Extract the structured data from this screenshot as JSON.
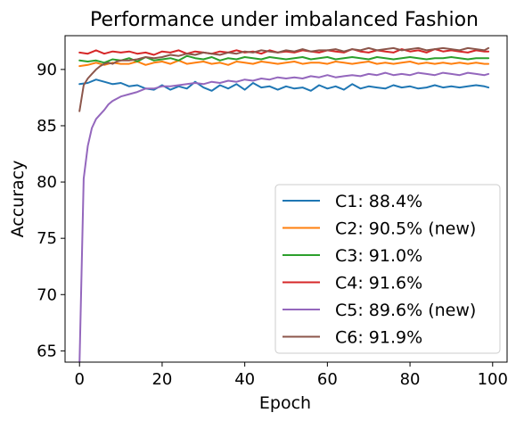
{
  "chart_data": {
    "type": "line",
    "title": "Performance under imbalanced Fashion",
    "xlabel": "Epoch",
    "ylabel": "Accuracy",
    "xlim": [
      -3.5,
      103.5
    ],
    "ylim": [
      64,
      93
    ],
    "xticks": [
      0,
      20,
      40,
      60,
      80,
      100
    ],
    "yticks": [
      65,
      70,
      75,
      80,
      85,
      90
    ],
    "grid": false,
    "legend_position": "lower-right",
    "series": [
      {
        "name": "C1: 88.4%",
        "color": "#1f77b4",
        "x": [
          0,
          2,
          4,
          6,
          8,
          10,
          12,
          14,
          16,
          18,
          20,
          22,
          24,
          26,
          28,
          30,
          32,
          34,
          36,
          38,
          40,
          42,
          44,
          46,
          48,
          50,
          52,
          54,
          56,
          58,
          60,
          62,
          64,
          66,
          68,
          70,
          72,
          74,
          76,
          78,
          80,
          82,
          84,
          86,
          88,
          90,
          92,
          94,
          96,
          98,
          99
        ],
        "y": [
          88.7,
          88.8,
          89.1,
          88.9,
          88.7,
          88.8,
          88.5,
          88.6,
          88.3,
          88.2,
          88.6,
          88.2,
          88.5,
          88.3,
          88.9,
          88.4,
          88.1,
          88.6,
          88.3,
          88.7,
          88.2,
          88.8,
          88.4,
          88.5,
          88.2,
          88.5,
          88.3,
          88.4,
          88.1,
          88.6,
          88.3,
          88.5,
          88.2,
          88.7,
          88.3,
          88.5,
          88.4,
          88.3,
          88.6,
          88.4,
          88.5,
          88.3,
          88.4,
          88.6,
          88.4,
          88.5,
          88.4,
          88.5,
          88.6,
          88.5,
          88.4
        ]
      },
      {
        "name": "C2: 90.5% (new)",
        "color": "#ff7f0e",
        "x": [
          0,
          2,
          4,
          6,
          8,
          10,
          12,
          14,
          16,
          18,
          20,
          22,
          24,
          26,
          28,
          30,
          32,
          34,
          36,
          38,
          40,
          42,
          44,
          46,
          48,
          50,
          52,
          54,
          56,
          58,
          60,
          62,
          64,
          66,
          68,
          70,
          72,
          74,
          76,
          78,
          80,
          82,
          84,
          86,
          88,
          90,
          92,
          94,
          96,
          98,
          99
        ],
        "y": [
          90.3,
          90.4,
          90.6,
          90.4,
          90.6,
          90.5,
          90.5,
          90.7,
          90.4,
          90.6,
          90.7,
          90.5,
          90.8,
          90.5,
          90.6,
          90.7,
          90.5,
          90.6,
          90.4,
          90.7,
          90.6,
          90.5,
          90.7,
          90.6,
          90.5,
          90.6,
          90.7,
          90.5,
          90.6,
          90.6,
          90.5,
          90.7,
          90.6,
          90.5,
          90.6,
          90.7,
          90.5,
          90.6,
          90.5,
          90.6,
          90.7,
          90.5,
          90.6,
          90.5,
          90.6,
          90.5,
          90.6,
          90.5,
          90.6,
          90.5,
          90.5
        ]
      },
      {
        "name": "C3: 91.0%",
        "color": "#2ca02c",
        "x": [
          0,
          2,
          4,
          6,
          8,
          10,
          12,
          14,
          16,
          18,
          20,
          22,
          24,
          26,
          28,
          30,
          32,
          34,
          36,
          38,
          40,
          42,
          44,
          46,
          48,
          50,
          52,
          54,
          56,
          58,
          60,
          62,
          64,
          66,
          68,
          70,
          72,
          74,
          76,
          78,
          80,
          82,
          84,
          86,
          88,
          90,
          92,
          94,
          96,
          98,
          99
        ],
        "y": [
          90.8,
          90.7,
          90.8,
          90.6,
          90.9,
          90.8,
          91.0,
          90.7,
          91.1,
          90.8,
          90.9,
          91.0,
          90.8,
          91.2,
          91.0,
          90.9,
          91.1,
          90.8,
          91.0,
          90.9,
          91.1,
          91.0,
          90.9,
          91.1,
          91.0,
          90.9,
          91.0,
          91.1,
          90.9,
          91.0,
          91.1,
          90.9,
          91.0,
          91.1,
          91.0,
          90.9,
          91.1,
          91.0,
          90.9,
          91.0,
          91.1,
          91.0,
          90.9,
          91.0,
          91.0,
          91.1,
          91.0,
          90.9,
          91.0,
          91.0,
          91.0
        ]
      },
      {
        "name": "C4: 91.6%",
        "color": "#d62728",
        "x": [
          0,
          2,
          4,
          6,
          8,
          10,
          12,
          14,
          16,
          18,
          20,
          22,
          24,
          26,
          28,
          30,
          32,
          34,
          36,
          38,
          40,
          42,
          44,
          46,
          48,
          50,
          52,
          54,
          56,
          58,
          60,
          62,
          64,
          66,
          68,
          70,
          72,
          74,
          76,
          78,
          80,
          82,
          84,
          86,
          88,
          90,
          92,
          94,
          96,
          98,
          99
        ],
        "y": [
          91.5,
          91.4,
          91.7,
          91.4,
          91.6,
          91.5,
          91.6,
          91.4,
          91.5,
          91.3,
          91.6,
          91.5,
          91.7,
          91.4,
          91.6,
          91.5,
          91.4,
          91.6,
          91.5,
          91.7,
          91.5,
          91.6,
          91.4,
          91.7,
          91.5,
          91.6,
          91.5,
          91.7,
          91.6,
          91.5,
          91.7,
          91.6,
          91.5,
          91.8,
          91.6,
          91.5,
          91.7,
          91.6,
          91.5,
          91.8,
          91.6,
          91.7,
          91.5,
          91.8,
          91.6,
          91.7,
          91.6,
          91.5,
          91.7,
          91.6,
          91.6
        ]
      },
      {
        "name": "C5: 89.6% (new)",
        "color": "#9467bd",
        "x": [
          0,
          1,
          2,
          3,
          4,
          5,
          6,
          7,
          8,
          9,
          10,
          12,
          14,
          16,
          18,
          20,
          22,
          24,
          26,
          28,
          30,
          32,
          34,
          36,
          38,
          40,
          42,
          44,
          46,
          48,
          50,
          52,
          54,
          56,
          58,
          60,
          62,
          64,
          66,
          68,
          70,
          72,
          74,
          76,
          78,
          80,
          82,
          84,
          86,
          88,
          90,
          92,
          94,
          96,
          98,
          99
        ],
        "y": [
          63.8,
          80.3,
          83.2,
          84.8,
          85.6,
          86.0,
          86.4,
          86.9,
          87.2,
          87.4,
          87.6,
          87.8,
          88.0,
          88.3,
          88.3,
          88.5,
          88.5,
          88.6,
          88.7,
          88.8,
          88.7,
          88.9,
          88.8,
          89.0,
          88.9,
          89.1,
          89.0,
          89.2,
          89.1,
          89.3,
          89.2,
          89.3,
          89.2,
          89.4,
          89.3,
          89.5,
          89.3,
          89.4,
          89.5,
          89.4,
          89.6,
          89.5,
          89.7,
          89.5,
          89.6,
          89.5,
          89.7,
          89.6,
          89.5,
          89.7,
          89.6,
          89.5,
          89.7,
          89.6,
          89.5,
          89.6
        ]
      },
      {
        "name": "C6: 91.9%",
        "color": "#8c564b",
        "x": [
          0,
          1,
          2,
          3,
          4,
          5,
          6,
          7,
          8,
          9,
          10,
          12,
          14,
          16,
          18,
          20,
          22,
          24,
          26,
          28,
          30,
          32,
          34,
          36,
          38,
          40,
          42,
          44,
          46,
          48,
          50,
          52,
          54,
          56,
          58,
          60,
          62,
          64,
          66,
          68,
          70,
          72,
          74,
          76,
          78,
          80,
          82,
          84,
          86,
          88,
          90,
          92,
          94,
          96,
          98,
          99
        ],
        "y": [
          86.3,
          88.6,
          89.2,
          89.6,
          90.0,
          90.3,
          90.5,
          90.6,
          90.5,
          90.7,
          90.8,
          90.8,
          90.9,
          91.1,
          91.0,
          91.1,
          91.3,
          91.2,
          91.4,
          91.3,
          91.5,
          91.4,
          91.3,
          91.5,
          91.4,
          91.6,
          91.5,
          91.7,
          91.6,
          91.5,
          91.7,
          91.6,
          91.8,
          91.6,
          91.7,
          91.7,
          91.8,
          91.6,
          91.8,
          91.7,
          91.9,
          91.7,
          91.8,
          91.9,
          91.7,
          91.8,
          91.9,
          91.7,
          91.8,
          91.9,
          91.8,
          91.7,
          91.9,
          91.8,
          91.7,
          91.9
        ]
      }
    ]
  }
}
